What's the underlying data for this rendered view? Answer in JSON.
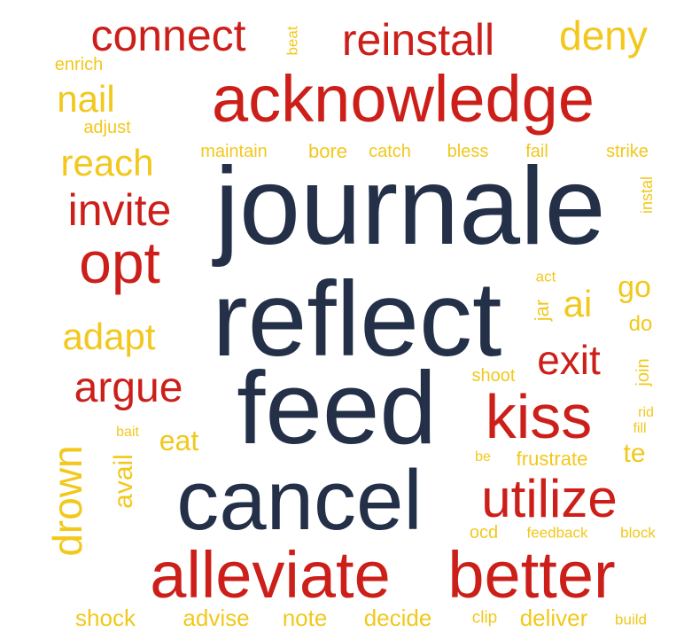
{
  "colors": {
    "navy": "#243048",
    "red": "#cc1f1a",
    "gold": "#f2c81c"
  },
  "words": [
    "journale",
    "reflect",
    "feed",
    "cancel",
    "acknowledge",
    "alleviate",
    "better",
    "kiss",
    "utilize",
    "opt",
    "reinstall",
    "connect",
    "invite",
    "argue",
    "exit",
    "deny",
    "reach",
    "nail",
    "adapt",
    "drown",
    "ai",
    "go",
    "enrich",
    "adjust",
    "beat",
    "maintain",
    "bore",
    "catch",
    "bless",
    "fail",
    "strike",
    "instal",
    "act",
    "jar",
    "do",
    "shoot",
    "join",
    "rid",
    "fill",
    "bait",
    "eat",
    "avail",
    "be",
    "frustrate",
    "te",
    "ocd",
    "feedback",
    "block",
    "shock",
    "advise",
    "note",
    "decide",
    "clip",
    "deliver",
    "build"
  ]
}
